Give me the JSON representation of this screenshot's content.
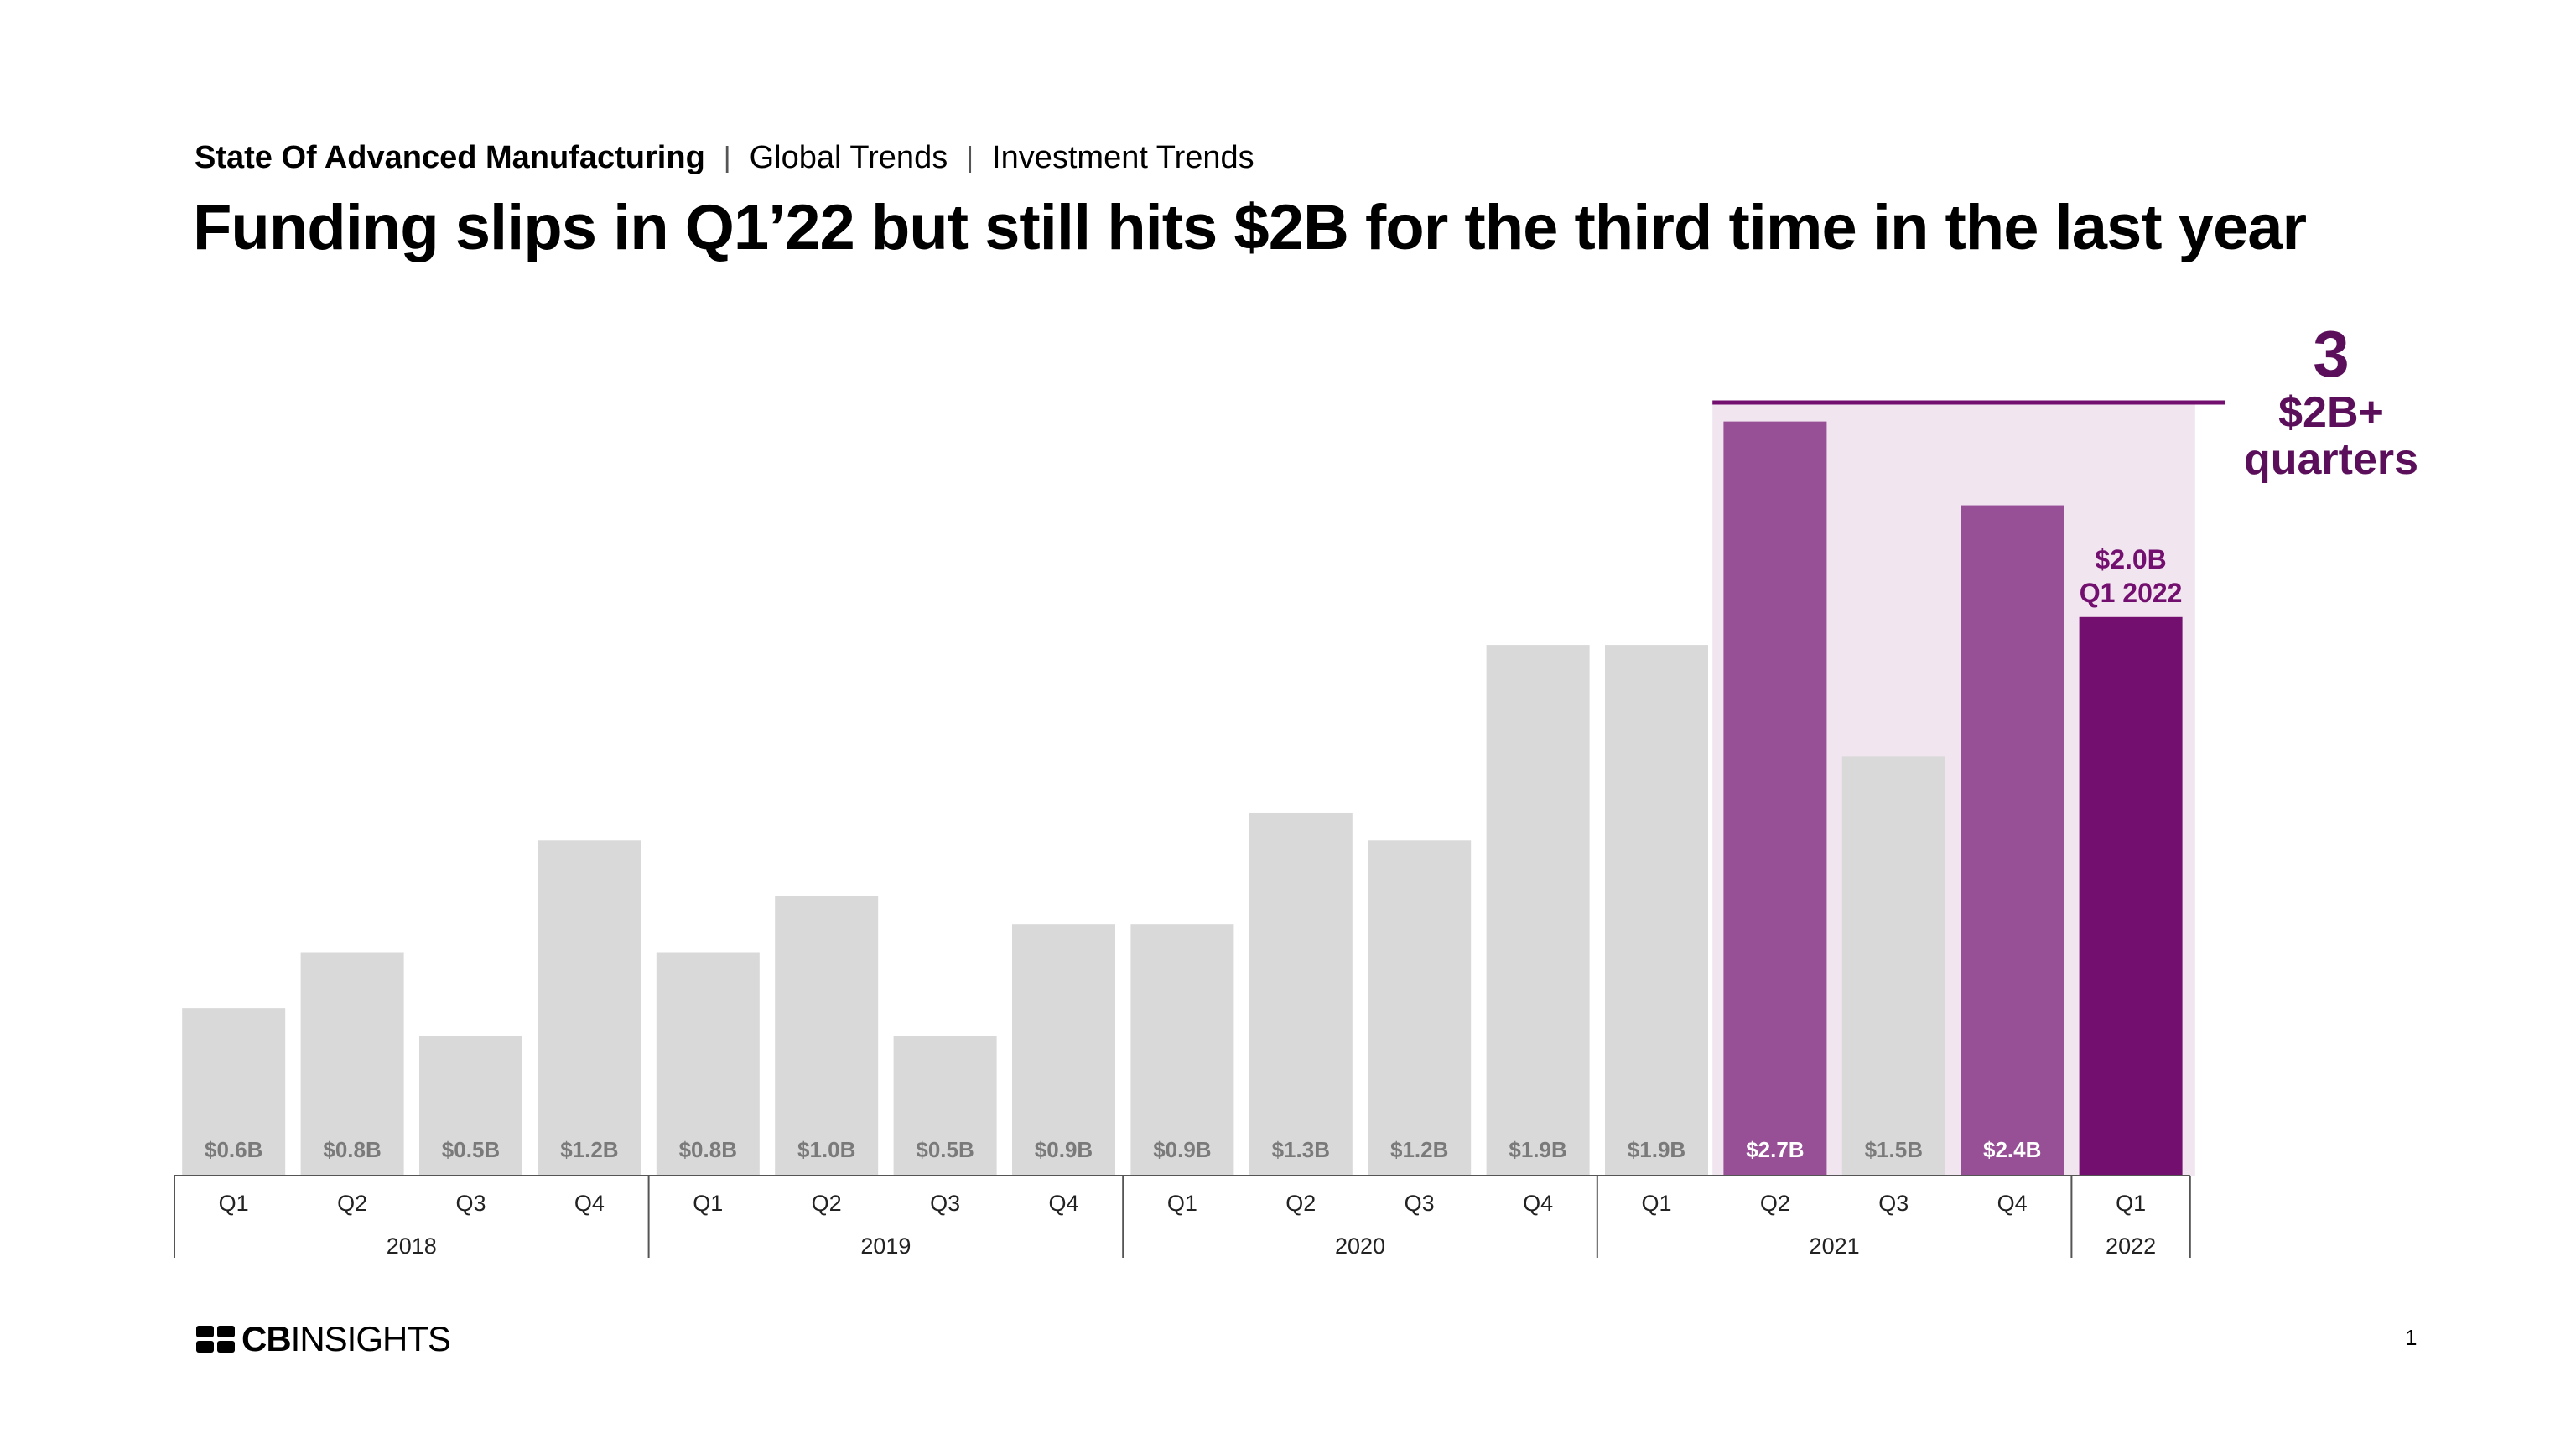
{
  "header": {
    "breadcrumb_main": "State Of Advanced Manufacturing",
    "breadcrumb_2": "Global Trends",
    "breadcrumb_3": "Investment Trends",
    "separator": "|",
    "title": "Funding slips in Q1’22 but still hits $2B for the third time in the last year"
  },
  "callout": {
    "count": "3",
    "line1": "$2B+",
    "line2": "quarters"
  },
  "footer": {
    "logo_cb": "CB",
    "logo_insights": "INSIGHTS",
    "page_number": "1"
  },
  "colors": {
    "bar_default": "#d9d9d9",
    "bar_highlight": "#974f96",
    "bar_latest": "#730f6f",
    "highlight_bg": "#f1e5f0",
    "callout": "#5b0f5a",
    "label_gray": "#7a7a7a"
  },
  "chart_data": {
    "type": "bar",
    "title": "",
    "xlabel": "",
    "ylabel": "",
    "ylim": [
      0,
      2.9
    ],
    "grid": false,
    "legend": "none",
    "categories": [
      "Q1",
      "Q2",
      "Q3",
      "Q4",
      "Q1",
      "Q2",
      "Q3",
      "Q4",
      "Q1",
      "Q2",
      "Q3",
      "Q4",
      "Q1",
      "Q2",
      "Q3",
      "Q4",
      "Q1"
    ],
    "years": [
      {
        "label": "2018",
        "start": 0,
        "count": 4
      },
      {
        "label": "2019",
        "start": 4,
        "count": 4
      },
      {
        "label": "2020",
        "start": 8,
        "count": 4
      },
      {
        "label": "2021",
        "start": 12,
        "count": 4
      },
      {
        "label": "2022",
        "start": 16,
        "count": 1
      }
    ],
    "values": [
      0.6,
      0.8,
      0.5,
      1.2,
      0.8,
      1.0,
      0.5,
      0.9,
      0.9,
      1.3,
      1.2,
      1.9,
      1.9,
      2.7,
      1.5,
      2.4,
      2.0
    ],
    "labels": [
      "$0.6B",
      "$0.8B",
      "$0.5B",
      "$1.2B",
      "$0.8B",
      "$1.0B",
      "$0.5B",
      "$0.9B",
      "$0.9B",
      "$1.3B",
      "$1.2B",
      "$1.9B",
      "$1.9B",
      "$2.7B",
      "$1.5B",
      "$2.4B",
      ""
    ],
    "highlight": [
      13,
      15
    ],
    "latest": 16,
    "latest_label_line1": "$2.0B",
    "latest_label_line2": "Q1 2022",
    "highlight_range_start": 13,
    "highlight_range_end": 16
  }
}
